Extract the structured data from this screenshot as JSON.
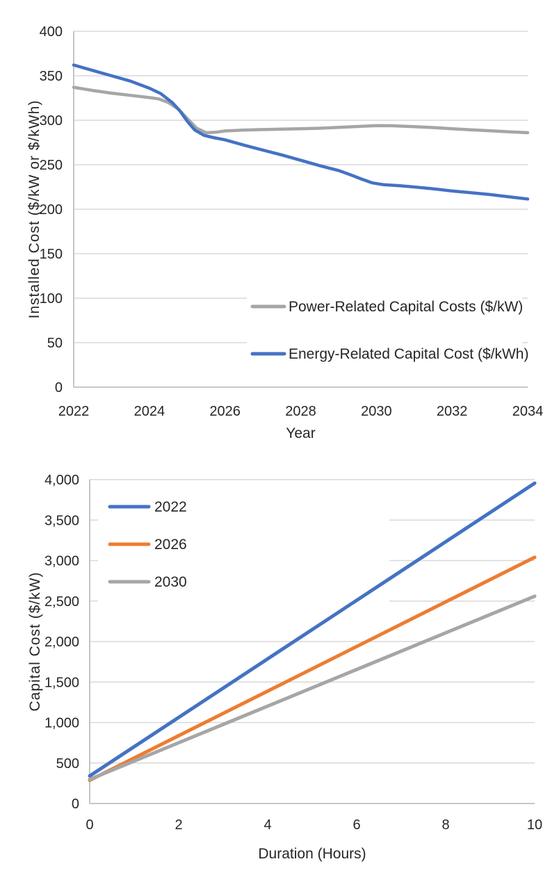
{
  "figure": {
    "background": "#ffffff",
    "description_colors": {
      "blue": "#4472C4",
      "orange": "#ED7D31",
      "gray": "#A6A6A6",
      "gridline": "#D9D9D9",
      "axis_line": "#BFBFBF",
      "text": "#262626"
    }
  },
  "chart_data": [
    {
      "type": "line",
      "title": "",
      "xlabel": "Year",
      "ylabel": "Installed Cost ($/kW or $/kWh)",
      "xlim": [
        2022,
        2034
      ],
      "ylim": [
        0,
        400
      ],
      "x_ticks": [
        2022,
        2024,
        2026,
        2028,
        2030,
        2032,
        2034
      ],
      "y_ticks": [
        0,
        50,
        100,
        150,
        200,
        250,
        300,
        350,
        400
      ],
      "y_tick_labels": [
        "0",
        "50",
        "100",
        "150",
        "200",
        "250",
        "300",
        "350",
        "400"
      ],
      "grid": true,
      "legend_position": "inside-lower-right",
      "series": [
        {
          "name": "Power-Related Capital Costs ($/kW)",
          "color": "#A6A6A6",
          "x": [
            2022,
            2022.5,
            2023,
            2023.5,
            2024,
            2024.25,
            2024.5,
            2024.75,
            2025,
            2025.25,
            2025.5,
            2025.75,
            2026,
            2026.5,
            2027,
            2027.5,
            2028,
            2028.5,
            2029,
            2029.5,
            2030,
            2030.4,
            2031,
            2031.5,
            2032,
            2032.5,
            2033,
            2033.5,
            2034
          ],
          "values": [
            337,
            333.5,
            330.5,
            328,
            325.5,
            324,
            320,
            313,
            302,
            291,
            286,
            286.5,
            288,
            289,
            289.5,
            290,
            290.5,
            291,
            292,
            293,
            294,
            293.8,
            292.8,
            291.8,
            290.5,
            289.3,
            288.2,
            287,
            286
          ]
        },
        {
          "name": "Energy-Related Capital Cost ($/kWh)",
          "color": "#4472C4",
          "x": [
            2022,
            2022.5,
            2023,
            2023.5,
            2024,
            2024.3,
            2024.6,
            2024.8,
            2025,
            2025.2,
            2025.45,
            2025.7,
            2026,
            2026.5,
            2027,
            2027.5,
            2028,
            2028.5,
            2029,
            2029.3,
            2029.6,
            2029.9,
            2030.2,
            2030.6,
            2031,
            2031.5,
            2032,
            2032.5,
            2033,
            2033.5,
            2034
          ],
          "values": [
            362,
            356,
            350,
            344,
            336,
            330,
            320,
            311,
            299,
            289,
            283,
            280.5,
            278,
            272,
            266.5,
            261,
            255,
            249,
            243.5,
            239,
            234,
            229.5,
            227.5,
            226.5,
            225,
            223,
            220.5,
            218.5,
            216.5,
            214,
            211.5
          ]
        }
      ]
    },
    {
      "type": "line",
      "title": "",
      "xlabel": "Duration (Hours)",
      "ylabel": "Capital Cost ($/kW)",
      "xlim": [
        0,
        10
      ],
      "ylim": [
        0,
        4000
      ],
      "x_ticks": [
        0,
        2,
        4,
        6,
        8,
        10
      ],
      "y_ticks": [
        0,
        500,
        1000,
        1500,
        2000,
        2500,
        3000,
        3500,
        4000
      ],
      "y_tick_labels": [
        "0",
        "500",
        "1,000",
        "1,500",
        "2,000",
        "2,500",
        "3,000",
        "3,500",
        "4,000"
      ],
      "grid": true,
      "legend_position": "inside-upper-left",
      "series": [
        {
          "name": "2022",
          "color": "#4472C4",
          "x": [
            0,
            10
          ],
          "values": [
            340,
            3955
          ]
        },
        {
          "name": "2026",
          "color": "#ED7D31",
          "x": [
            0,
            10
          ],
          "values": [
            287,
            3040
          ]
        },
        {
          "name": "2030",
          "color": "#A6A6A6",
          "x": [
            0,
            10
          ],
          "values": [
            298,
            2560
          ]
        }
      ]
    }
  ]
}
